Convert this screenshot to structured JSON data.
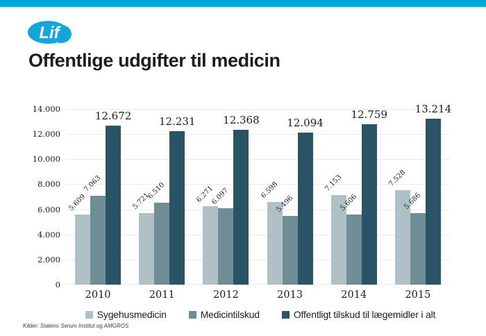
{
  "page": {
    "topbar_color": "#00a8d8",
    "logo_text": "Lif",
    "logo_color": "#16a5da",
    "title": "Offentlige udgifter til medicin",
    "source": "Kilder: Statens Serum Institut og AMGROS"
  },
  "chart_data": {
    "type": "bar",
    "title": "Offentlige udgifter til medicin",
    "categories": [
      "2010",
      "2011",
      "2012",
      "2013",
      "2014",
      "2015"
    ],
    "series": [
      {
        "name": "Sygehusmedicin",
        "color": "#afc0c6",
        "values": [
          5609,
          5721,
          6271,
          6598,
          7153,
          7528
        ],
        "labels": [
          "5.609",
          "5.721",
          "6.271",
          "6.598",
          "7.153",
          "7.528"
        ]
      },
      {
        "name": "Medicintilskud",
        "color": "#6f8d97",
        "values": [
          7063,
          6510,
          6097,
          5496,
          5606,
          5686
        ],
        "labels": [
          "7.063",
          "6.510",
          "6.097",
          "5.496",
          "5.606",
          "5.686"
        ]
      },
      {
        "name": "Offentligt tilskud til lægemidler i alt",
        "color": "#2a5464",
        "values": [
          12672,
          12231,
          12368,
          12094,
          12759,
          13214
        ],
        "labels": [
          "12.672",
          "12.231",
          "12.368",
          "12.094",
          "12.759",
          "13.214"
        ]
      }
    ],
    "y_ticks": [
      "0",
      "2.000",
      "4.000",
      "6.000",
      "8.000",
      "10.000",
      "12.000",
      "14.000"
    ],
    "ylim": [
      0,
      14000
    ],
    "grid": true,
    "legend_position": "bottom"
  }
}
